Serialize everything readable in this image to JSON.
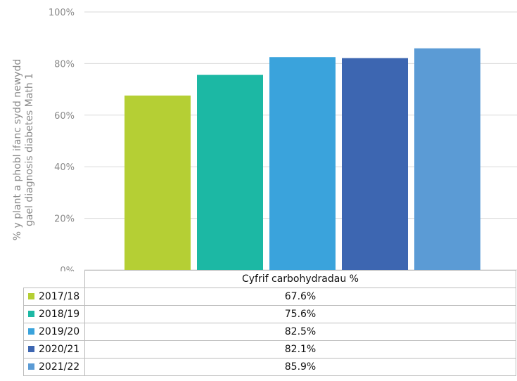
{
  "chart_data": {
    "type": "bar",
    "title": "",
    "ylabel": "% y plant a phobl ifanc sydd newydd gael diagnosis diabetes Math 1",
    "ylabel_lines": [
      "% y plant a phobl ifanc sydd newydd",
      "gael diagnosis diabetes Math 1"
    ],
    "ylim": [
      0,
      100
    ],
    "yticks": [
      0,
      20,
      40,
      60,
      80,
      100
    ],
    "ytick_labels": [
      "0%",
      "20%",
      "40%",
      "60%",
      "80%",
      "100%"
    ],
    "grid": true,
    "category_group": "Cyfrif carbohydradau %",
    "series": [
      {
        "name": "2017/18",
        "value": 67.6,
        "label": "67.6%",
        "color": "#b5cf34"
      },
      {
        "name": "2018/19",
        "value": 75.6,
        "label": "75.6%",
        "color": "#1cb8a4"
      },
      {
        "name": "2019/20",
        "value": 82.5,
        "label": "82.5%",
        "color": "#3aa3dc"
      },
      {
        "name": "2020/21",
        "value": 82.1,
        "label": "82.1%",
        "color": "#3d66b1"
      },
      {
        "name": "2021/22",
        "value": 85.9,
        "label": "85.9%",
        "color": "#5b9bd5"
      }
    ]
  }
}
